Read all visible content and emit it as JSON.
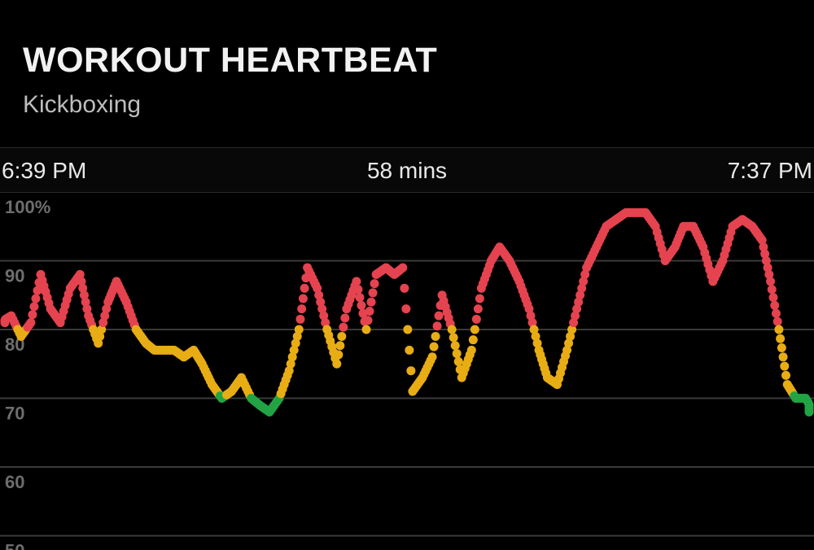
{
  "header": {
    "title": "WORKOUT HEARTBEAT",
    "subtitle": "Kickboxing"
  },
  "timeline": {
    "start": "6:39 PM",
    "duration": "58 mins",
    "end": "7:37 PM"
  },
  "colors": {
    "background": "#000000",
    "gridline": "#3a3a3a",
    "zone_high": "#e5434f",
    "zone_mid": "#e8ad14",
    "zone_low": "#22a444"
  },
  "chart_data": {
    "type": "scatter",
    "xlabel": "",
    "ylabel": "",
    "ylim": [
      50,
      100
    ],
    "xlim": [
      0,
      58
    ],
    "x_unit": "minutes since 6:39 PM",
    "y_ticks": [
      "100%",
      "90",
      "80",
      "70",
      "60",
      "50"
    ],
    "tick_values": [
      100,
      90,
      80,
      70,
      60,
      50
    ],
    "grid": true,
    "zone_thresholds": {
      "high_above": 80,
      "low_below": 70.5
    },
    "series": [
      {
        "values": [
          [
            0,
            81
          ],
          [
            0.8,
            82
          ],
          [
            1.5,
            79
          ],
          [
            2.2,
            81
          ],
          [
            2.9,
            88
          ],
          [
            3.6,
            83
          ],
          [
            4.3,
            81
          ],
          [
            5.0,
            86
          ],
          [
            5.7,
            88
          ],
          [
            6.3,
            82
          ],
          [
            7.0,
            78
          ],
          [
            7.7,
            84
          ],
          [
            8.3,
            87
          ],
          [
            9.0,
            84
          ],
          [
            9.7,
            80
          ],
          [
            10.4,
            78
          ],
          [
            11.0,
            77
          ],
          [
            11.7,
            77
          ],
          [
            12.4,
            77
          ],
          [
            13.1,
            76
          ],
          [
            13.8,
            77
          ],
          [
            14.4,
            75
          ],
          [
            15.1,
            72
          ],
          [
            15.8,
            70
          ],
          [
            16.5,
            71
          ],
          [
            17.2,
            73
          ],
          [
            17.9,
            70
          ],
          [
            18.5,
            69
          ],
          [
            19.2,
            68
          ],
          [
            19.9,
            70
          ],
          [
            20.6,
            74
          ],
          [
            21.3,
            80
          ],
          [
            21.9,
            89
          ],
          [
            22.6,
            86
          ],
          [
            23.3,
            80
          ],
          [
            24.0,
            75
          ],
          [
            24.7,
            83
          ],
          [
            25.4,
            87
          ],
          [
            26.1,
            80
          ],
          [
            26.8,
            88
          ],
          [
            27.5,
            89
          ],
          [
            28.1,
            88
          ],
          [
            28.7,
            89
          ],
          [
            29.4,
            71
          ],
          [
            30.1,
            73
          ],
          [
            30.8,
            76
          ],
          [
            31.5,
            85
          ],
          [
            32.2,
            80
          ],
          [
            32.9,
            73
          ],
          [
            33.6,
            77
          ],
          [
            34.3,
            86
          ],
          [
            35.0,
            90
          ],
          [
            35.6,
            92
          ],
          [
            36.3,
            90
          ],
          [
            37.0,
            87
          ],
          [
            37.7,
            83
          ],
          [
            38.4,
            77
          ],
          [
            39.0,
            73
          ],
          [
            39.7,
            72
          ],
          [
            40.4,
            77
          ],
          [
            41.1,
            83
          ],
          [
            41.8,
            89
          ],
          [
            42.5,
            92
          ],
          [
            43.2,
            95
          ],
          [
            43.9,
            96
          ],
          [
            44.6,
            97
          ],
          [
            45.3,
            97
          ],
          [
            46.0,
            97
          ],
          [
            46.7,
            95
          ],
          [
            47.4,
            90
          ],
          [
            48.1,
            92
          ],
          [
            48.7,
            95
          ],
          [
            49.4,
            95
          ],
          [
            50.1,
            92
          ],
          [
            50.8,
            87
          ],
          [
            51.5,
            90
          ],
          [
            52.2,
            95
          ],
          [
            52.9,
            96
          ],
          [
            53.6,
            95
          ],
          [
            54.3,
            93
          ],
          [
            54.9,
            87
          ],
          [
            55.5,
            80
          ],
          [
            56.1,
            72
          ],
          [
            56.7,
            70
          ],
          [
            57.4,
            70
          ],
          [
            58,
            68
          ]
        ]
      }
    ]
  }
}
